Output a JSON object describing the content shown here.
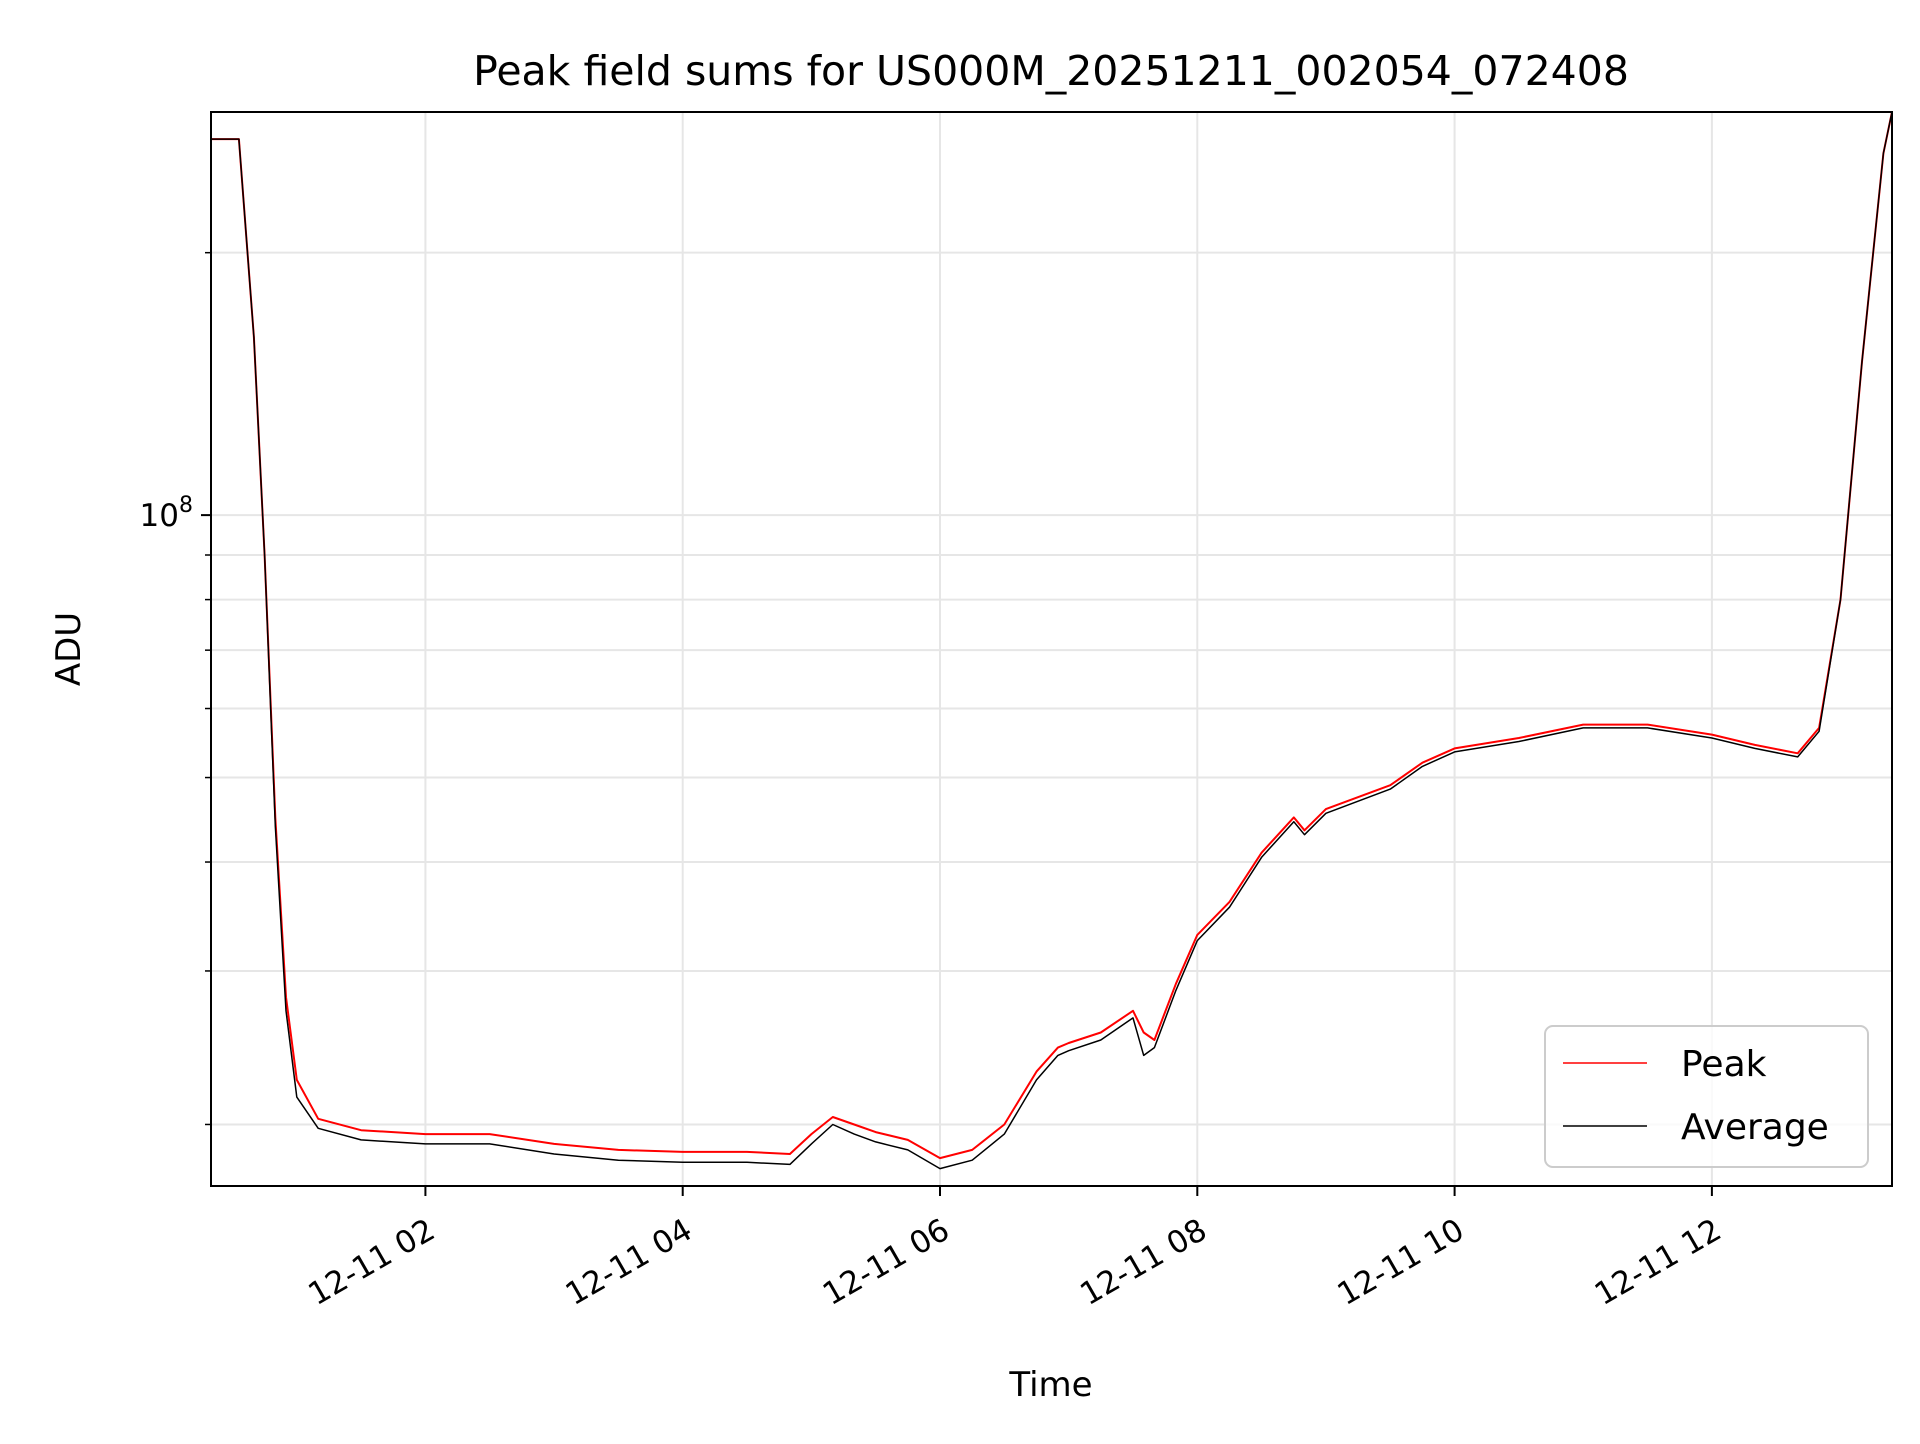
{
  "chart_data": {
    "type": "line",
    "title": "Peak field sums for US000M_20251211_002054_072408",
    "xlabel": "Time",
    "ylabel": "ADU",
    "y_scale": "log",
    "grid": true,
    "legend_position": "lower right",
    "xlim": [
      "2025-12-11 00:20",
      "2025-12-11 13:24"
    ],
    "ylim": [
      17000000,
      290000000
    ],
    "x_tick_labels": [
      "12-11 02",
      "12-11 04",
      "12-11 06",
      "12-11 08",
      "12-11 10",
      "12-11 12"
    ],
    "x_ticks": [
      "2025-12-11 02:00",
      "2025-12-11 04:00",
      "2025-12-11 06:00",
      "2025-12-11 08:00",
      "2025-12-11 10:00",
      "2025-12-11 12:00"
    ],
    "y_tick_labels": [
      {
        "base": "10",
        "exp": "8"
      }
    ],
    "y_ticks": [
      100000000
    ],
    "y_minor_ticks": [
      20000000,
      30000000,
      40000000,
      50000000,
      60000000,
      70000000,
      80000000,
      90000000,
      200000000
    ],
    "series": [
      {
        "name": "Peak",
        "color": "#ff0000",
        "points": [
          [
            "2025-12-11 00:20",
            270000000
          ],
          [
            "2025-12-11 00:33",
            270000000
          ],
          [
            "2025-12-11 00:40",
            160000000
          ],
          [
            "2025-12-11 00:45",
            90000000
          ],
          [
            "2025-12-11 00:50",
            45000000
          ],
          [
            "2025-12-11 00:55",
            28000000
          ],
          [
            "2025-12-11 01:00",
            22500000
          ],
          [
            "2025-12-11 01:10",
            20300000
          ],
          [
            "2025-12-11 01:30",
            19700000
          ],
          [
            "2025-12-11 02:00",
            19500000
          ],
          [
            "2025-12-11 02:30",
            19500000
          ],
          [
            "2025-12-11 03:00",
            19000000
          ],
          [
            "2025-12-11 03:30",
            18700000
          ],
          [
            "2025-12-11 04:00",
            18600000
          ],
          [
            "2025-12-11 04:30",
            18600000
          ],
          [
            "2025-12-11 04:50",
            18500000
          ],
          [
            "2025-12-11 05:00",
            19500000
          ],
          [
            "2025-12-11 05:10",
            20400000
          ],
          [
            "2025-12-11 05:20",
            20000000
          ],
          [
            "2025-12-11 05:30",
            19600000
          ],
          [
            "2025-12-11 05:45",
            19200000
          ],
          [
            "2025-12-11 06:00",
            18300000
          ],
          [
            "2025-12-11 06:15",
            18700000
          ],
          [
            "2025-12-11 06:30",
            20000000
          ],
          [
            "2025-12-11 06:45",
            23000000
          ],
          [
            "2025-12-11 06:55",
            24500000
          ],
          [
            "2025-12-11 07:00",
            24800000
          ],
          [
            "2025-12-11 07:15",
            25500000
          ],
          [
            "2025-12-11 07:30",
            27000000
          ],
          [
            "2025-12-11 07:35",
            25500000
          ],
          [
            "2025-12-11 07:40",
            25000000
          ],
          [
            "2025-12-11 07:50",
            29000000
          ],
          [
            "2025-12-11 08:00",
            33000000
          ],
          [
            "2025-12-11 08:15",
            36000000
          ],
          [
            "2025-12-11 08:30",
            41000000
          ],
          [
            "2025-12-11 08:45",
            45000000
          ],
          [
            "2025-12-11 08:50",
            43500000
          ],
          [
            "2025-12-11 09:00",
            46000000
          ],
          [
            "2025-12-11 09:30",
            49000000
          ],
          [
            "2025-12-11 09:45",
            52000000
          ],
          [
            "2025-12-11 10:00",
            54000000
          ],
          [
            "2025-12-11 10:30",
            55500000
          ],
          [
            "2025-12-11 11:00",
            57500000
          ],
          [
            "2025-12-11 11:30",
            57500000
          ],
          [
            "2025-12-11 12:00",
            56000000
          ],
          [
            "2025-12-11 12:20",
            54500000
          ],
          [
            "2025-12-11 12:40",
            53300000
          ],
          [
            "2025-12-11 12:50",
            57000000
          ],
          [
            "2025-12-11 13:00",
            80000000
          ],
          [
            "2025-12-11 13:10",
            150000000
          ],
          [
            "2025-12-11 13:20",
            260000000
          ],
          [
            "2025-12-11 13:24",
            290000000
          ]
        ]
      },
      {
        "name": "Average",
        "color": "#000000",
        "points": [
          [
            "2025-12-11 00:20",
            270000000
          ],
          [
            "2025-12-11 00:33",
            270000000
          ],
          [
            "2025-12-11 00:40",
            160000000
          ],
          [
            "2025-12-11 00:45",
            90000000
          ],
          [
            "2025-12-11 00:50",
            44000000
          ],
          [
            "2025-12-11 00:55",
            27000000
          ],
          [
            "2025-12-11 01:00",
            21500000
          ],
          [
            "2025-12-11 01:10",
            19800000
          ],
          [
            "2025-12-11 01:30",
            19200000
          ],
          [
            "2025-12-11 02:00",
            19000000
          ],
          [
            "2025-12-11 02:30",
            19000000
          ],
          [
            "2025-12-11 03:00",
            18500000
          ],
          [
            "2025-12-11 03:30",
            18200000
          ],
          [
            "2025-12-11 04:00",
            18100000
          ],
          [
            "2025-12-11 04:30",
            18100000
          ],
          [
            "2025-12-11 04:50",
            18000000
          ],
          [
            "2025-12-11 05:00",
            19000000
          ],
          [
            "2025-12-11 05:10",
            20000000
          ],
          [
            "2025-12-11 05:20",
            19500000
          ],
          [
            "2025-12-11 05:30",
            19100000
          ],
          [
            "2025-12-11 05:45",
            18700000
          ],
          [
            "2025-12-11 06:00",
            17800000
          ],
          [
            "2025-12-11 06:15",
            18200000
          ],
          [
            "2025-12-11 06:30",
            19500000
          ],
          [
            "2025-12-11 06:45",
            22500000
          ],
          [
            "2025-12-11 06:55",
            24000000
          ],
          [
            "2025-12-11 07:00",
            24300000
          ],
          [
            "2025-12-11 07:15",
            25000000
          ],
          [
            "2025-12-11 07:30",
            26500000
          ],
          [
            "2025-12-11 07:35",
            24000000
          ],
          [
            "2025-12-11 07:40",
            24500000
          ],
          [
            "2025-12-11 07:50",
            28500000
          ],
          [
            "2025-12-11 08:00",
            32500000
          ],
          [
            "2025-12-11 08:15",
            35500000
          ],
          [
            "2025-12-11 08:30",
            40500000
          ],
          [
            "2025-12-11 08:45",
            44500000
          ],
          [
            "2025-12-11 08:50",
            43000000
          ],
          [
            "2025-12-11 09:00",
            45500000
          ],
          [
            "2025-12-11 09:30",
            48500000
          ],
          [
            "2025-12-11 09:45",
            51500000
          ],
          [
            "2025-12-11 10:00",
            53500000
          ],
          [
            "2025-12-11 10:30",
            55000000
          ],
          [
            "2025-12-11 11:00",
            57000000
          ],
          [
            "2025-12-11 11:30",
            57000000
          ],
          [
            "2025-12-11 12:00",
            55500000
          ],
          [
            "2025-12-11 12:20",
            54000000
          ],
          [
            "2025-12-11 12:40",
            52800000
          ],
          [
            "2025-12-11 12:50",
            56500000
          ],
          [
            "2025-12-11 13:00",
            80000000
          ],
          [
            "2025-12-11 13:10",
            150000000
          ],
          [
            "2025-12-11 13:20",
            260000000
          ],
          [
            "2025-12-11 13:24",
            290000000
          ]
        ]
      }
    ]
  }
}
